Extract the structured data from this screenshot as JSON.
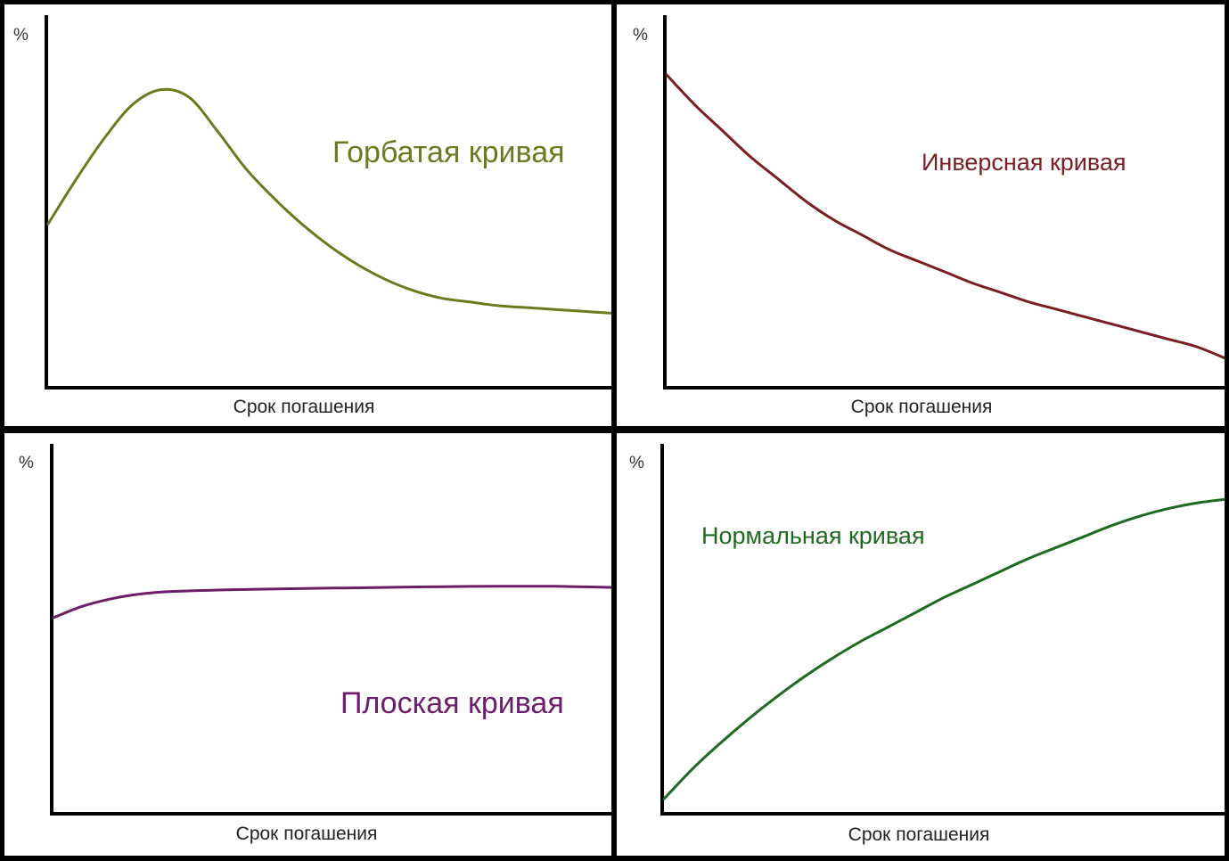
{
  "colors": {
    "axis": "#000000",
    "background": "#ffffff",
    "divider": "#000000"
  },
  "chart_data": [
    {
      "type": "line",
      "title": "Горбатая кривая",
      "xlabel": "Срок погашения",
      "ylabel": "%",
      "color": "#6b7a1e",
      "xlim": [
        0,
        100
      ],
      "ylim": [
        0,
        100
      ],
      "grid": false,
      "legend": "none",
      "x": [
        0,
        5,
        10,
        15,
        20,
        25,
        30,
        35,
        40,
        45,
        50,
        55,
        60,
        65,
        70,
        75,
        80,
        85,
        90,
        95,
        100
      ],
      "y": [
        44,
        56,
        67,
        76,
        80,
        78,
        69,
        59,
        51,
        44,
        38,
        33,
        29,
        26,
        24,
        23,
        22,
        21.5,
        21,
        20.5,
        20
      ]
    },
    {
      "type": "line",
      "title": "Инверсная кривая",
      "xlabel": "Срок погашения",
      "ylabel": "%",
      "color": "#7a1e22",
      "xlim": [
        0,
        100
      ],
      "ylim": [
        0,
        100
      ],
      "grid": false,
      "legend": "none",
      "x": [
        0,
        5,
        10,
        15,
        20,
        25,
        30,
        35,
        40,
        45,
        50,
        55,
        60,
        65,
        70,
        75,
        80,
        85,
        90,
        95,
        100
      ],
      "y": [
        84,
        76,
        69,
        62,
        56,
        50,
        45,
        41,
        37,
        34,
        31,
        28,
        25.5,
        23,
        21,
        19,
        17,
        15,
        13,
        11,
        8
      ]
    },
    {
      "type": "line",
      "title": "Плоская кривая",
      "xlabel": "Срок погашения",
      "ylabel": "%",
      "color": "#6e1d6a",
      "xlim": [
        0,
        100
      ],
      "ylim": [
        0,
        100
      ],
      "grid": false,
      "legend": "none",
      "x": [
        0,
        5,
        10,
        15,
        20,
        25,
        30,
        40,
        50,
        60,
        70,
        80,
        90,
        100
      ],
      "y": [
        53,
        56,
        58,
        59.3,
        60,
        60.3,
        60.5,
        60.8,
        61,
        61.2,
        61.4,
        61.5,
        61.5,
        61.2
      ]
    },
    {
      "type": "line",
      "title": "Нормальная кривая",
      "xlabel": "Срок погашения",
      "ylabel": "%",
      "color": "#1e6a1e",
      "xlim": [
        0,
        100
      ],
      "ylim": [
        0,
        100
      ],
      "grid": false,
      "legend": "none",
      "x": [
        0,
        5,
        10,
        15,
        20,
        25,
        30,
        35,
        40,
        45,
        50,
        55,
        60,
        65,
        70,
        75,
        80,
        85,
        90,
        95,
        100
      ],
      "y": [
        4,
        12,
        19,
        25.5,
        31.5,
        37,
        42,
        46.5,
        50.5,
        54.5,
        58.5,
        62,
        65.5,
        69,
        72,
        75,
        78,
        80.5,
        82.5,
        84,
        85
      ]
    }
  ]
}
